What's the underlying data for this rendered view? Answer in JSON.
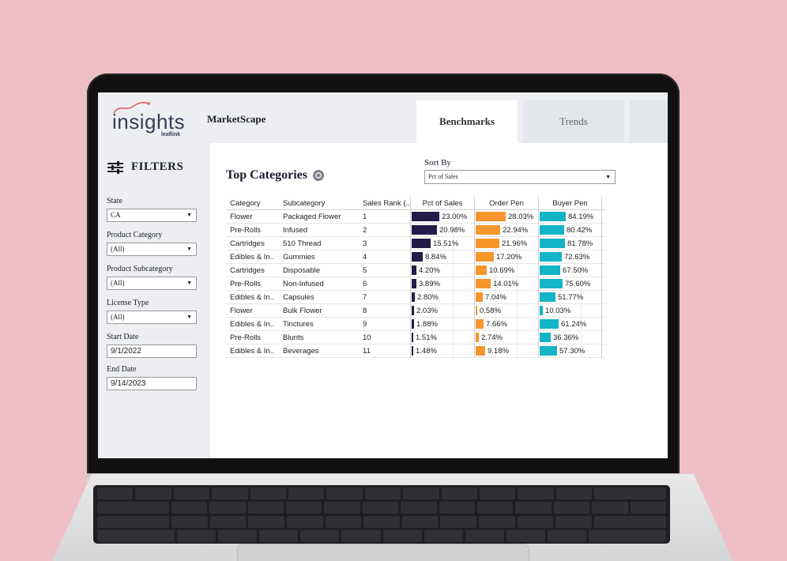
{
  "header": {
    "logo_text": "insights",
    "logo_sub": "leaflink",
    "app_name": "MarketScape",
    "tabs": [
      {
        "label": "Benchmarks",
        "active": true
      },
      {
        "label": "Trends",
        "active": false
      }
    ]
  },
  "sidebar": {
    "title": "FILTERS",
    "filters": [
      {
        "label": "State",
        "value": "CA"
      },
      {
        "label": "Product Category",
        "value": "(All)"
      },
      {
        "label": "Product Subcategory",
        "value": "(All)"
      },
      {
        "label": "License Type",
        "value": "(All)"
      }
    ],
    "start_date": {
      "label": "Start Date",
      "value": "9/1/2022"
    },
    "end_date": {
      "label": "End Date",
      "value": "9/14/2023"
    }
  },
  "main": {
    "title": "Top Categories",
    "sort": {
      "label": "Sort By",
      "value": "Pct of Sales"
    },
    "columns": [
      "Category",
      "Subcategory",
      "Sales Rank (..",
      "Pct of Sales",
      "Order Pen",
      "Buyer Pen"
    ],
    "rows": [
      {
        "category": "Flower",
        "subcategory": "Packaged Flower",
        "rank": "1",
        "pct_sales": "23.00%",
        "order_pen": "28.03%",
        "buyer_pen": "84.19%",
        "v": [
          23.0,
          28.03,
          84.19
        ]
      },
      {
        "category": "Pre-Rolls",
        "subcategory": "Infused",
        "rank": "2",
        "pct_sales": "20.98%",
        "order_pen": "22.94%",
        "buyer_pen": "80.42%",
        "v": [
          20.98,
          22.94,
          80.42
        ]
      },
      {
        "category": "Cartridges",
        "subcategory": "510 Thread",
        "rank": "3",
        "pct_sales": "15.51%",
        "order_pen": "21.96%",
        "buyer_pen": "81.78%",
        "v": [
          15.51,
          21.96,
          81.78
        ]
      },
      {
        "category": "Edibles & In..",
        "subcategory": "Gummies",
        "rank": "4",
        "pct_sales": "8.84%",
        "order_pen": "17.20%",
        "buyer_pen": "72.63%",
        "v": [
          8.84,
          17.2,
          72.63
        ]
      },
      {
        "category": "Cartridges",
        "subcategory": "Disposable",
        "rank": "5",
        "pct_sales": "4.20%",
        "order_pen": "10.69%",
        "buyer_pen": "67.50%",
        "v": [
          4.2,
          10.69,
          67.5
        ]
      },
      {
        "category": "Pre-Rolls",
        "subcategory": "Non-Infused",
        "rank": "6",
        "pct_sales": "3.89%",
        "order_pen": "14.01%",
        "buyer_pen": "75.60%",
        "v": [
          3.89,
          14.01,
          75.6
        ]
      },
      {
        "category": "Edibles & In..",
        "subcategory": "Capsules",
        "rank": "7",
        "pct_sales": "2.80%",
        "order_pen": "7.04%",
        "buyer_pen": "51.77%",
        "v": [
          2.8,
          7.04,
          51.77
        ]
      },
      {
        "category": "Flower",
        "subcategory": "Bulk Flower",
        "rank": "8",
        "pct_sales": "2.03%",
        "order_pen": "0.58%",
        "buyer_pen": "10.03%",
        "v": [
          2.03,
          0.58,
          10.03
        ]
      },
      {
        "category": "Edibles & In..",
        "subcategory": "Tinctures",
        "rank": "9",
        "pct_sales": "1.88%",
        "order_pen": "7.66%",
        "buyer_pen": "61.24%",
        "v": [
          1.88,
          7.66,
          61.24
        ]
      },
      {
        "category": "Pre-Rolls",
        "subcategory": "Blunts",
        "rank": "10",
        "pct_sales": "1.51%",
        "order_pen": "2.74%",
        "buyer_pen": "36.36%",
        "v": [
          1.51,
          2.74,
          36.36
        ]
      },
      {
        "category": "Edibles & In..",
        "subcategory": "Beverages",
        "rank": "11",
        "pct_sales": "1.48%",
        "order_pen": "9.18%",
        "buyer_pen": "57.30%",
        "v": [
          1.48,
          9.18,
          57.3
        ]
      }
    ]
  },
  "colors": {
    "pct_sales_bar": "#221c4a",
    "order_pen_bar": "#f7962d",
    "buyer_pen_bar": "#13b4c6",
    "background": "#efbfc8"
  },
  "icons": [
    "sliders-icon",
    "gear-icon",
    "chevron-down-icon",
    "leaflink-icon"
  ]
}
